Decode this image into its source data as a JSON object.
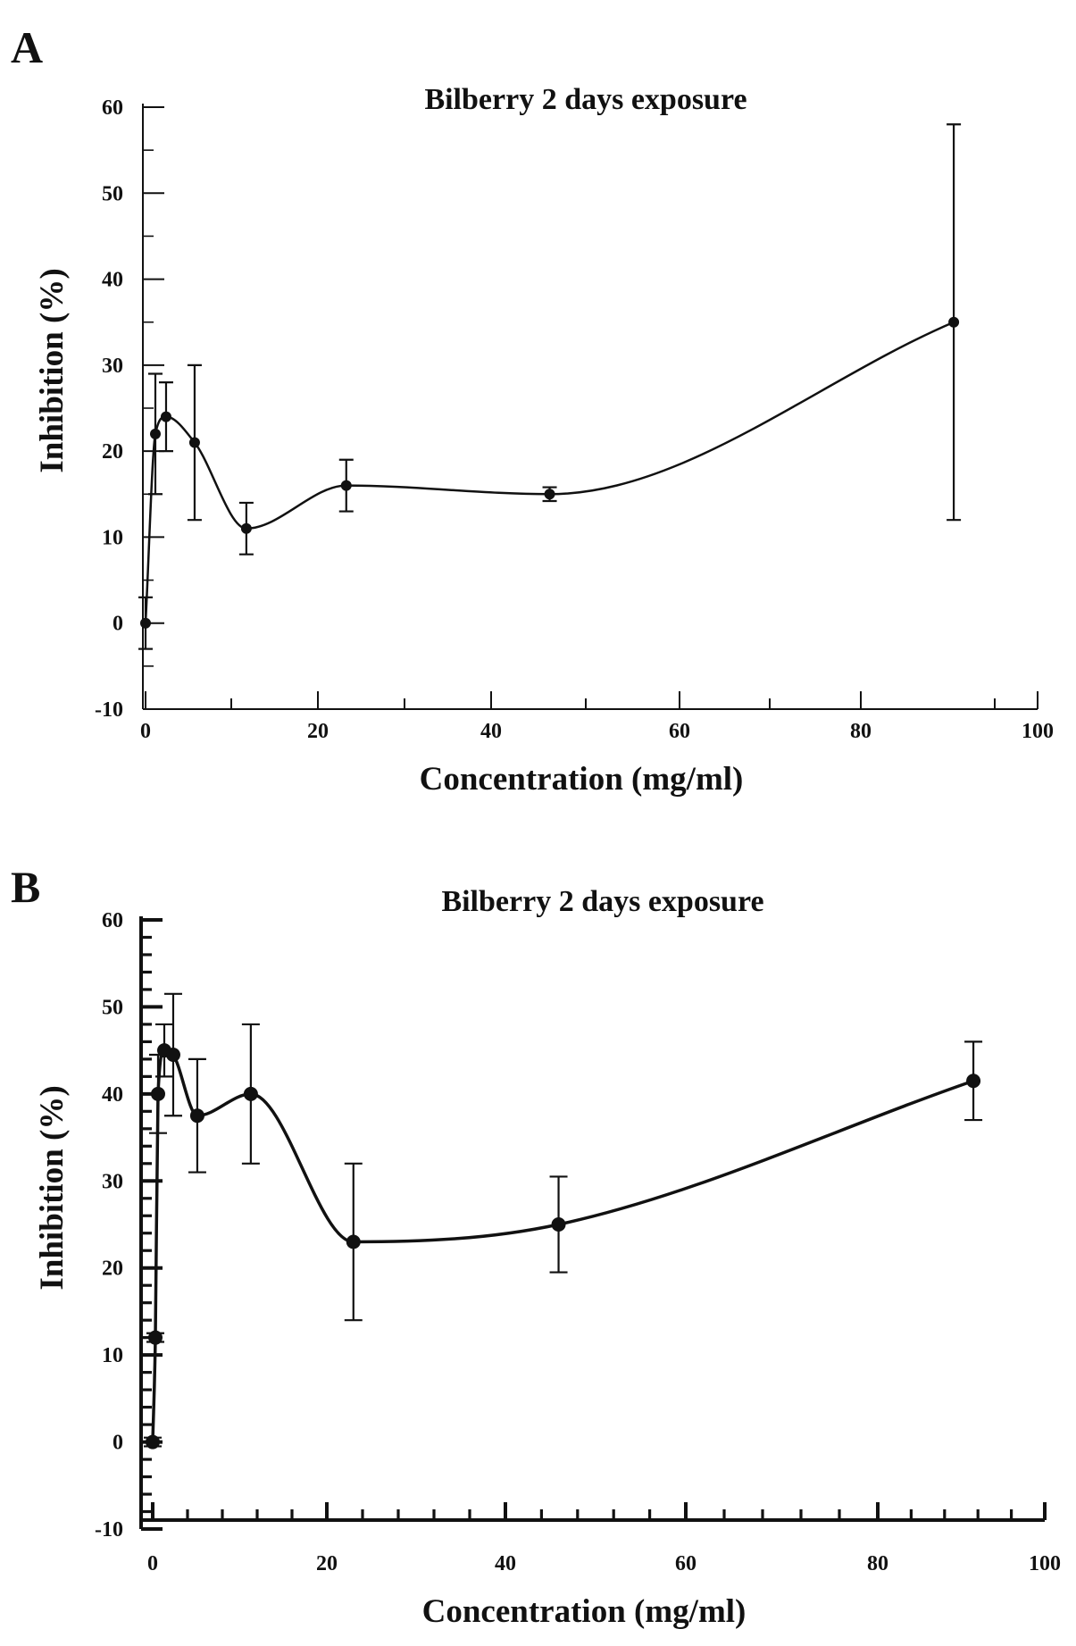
{
  "chart_data": [
    {
      "panel": "A",
      "type": "line",
      "title": "Bilberry 2 days exposure",
      "xlabel": "Concentration (mg/ml)",
      "ylabel": "Inhibition (%)",
      "xlim": [
        0,
        100
      ],
      "ylim": [
        -10,
        60
      ],
      "x_ticks": [
        "0",
        "20",
        "40",
        "60",
        "80",
        "100"
      ],
      "y_ticks": [
        "60",
        "50",
        "40",
        "30",
        "20",
        "10",
        "0",
        "-10"
      ],
      "grid": false,
      "series": [
        {
          "x": [
            0,
            1.1,
            2.3,
            5.5,
            11.3,
            22.5,
            45.3,
            90.6
          ],
          "y": [
            0,
            22,
            24,
            21,
            11,
            16,
            15,
            35
          ],
          "err": [
            3,
            7,
            4,
            9,
            3,
            3,
            0.8,
            23
          ]
        }
      ]
    },
    {
      "panel": "B",
      "type": "line",
      "title": "Bilberry 2 days exposure",
      "xlabel": "Concentration (mg/ml)",
      "ylabel": "Inhibition (%)",
      "xlim": [
        0,
        100
      ],
      "ylim": [
        -10,
        60
      ],
      "x_ticks": [
        "0",
        "20",
        "40",
        "60",
        "80",
        "100"
      ],
      "y_ticks": [
        "60",
        "50",
        "40",
        "30",
        "20",
        "10",
        "0",
        "-10"
      ],
      "grid": false,
      "series": [
        {
          "x": [
            0,
            0.3,
            0.6,
            1.3,
            2.3,
            5,
            11,
            22.5,
            45.5,
            92
          ],
          "y": [
            0,
            12,
            40,
            45,
            44.5,
            37.5,
            40,
            23,
            25,
            41.5
          ],
          "err": [
            0.5,
            0.5,
            4.5,
            3,
            7,
            6.5,
            8,
            9,
            5.5,
            4.5
          ]
        }
      ]
    }
  ]
}
